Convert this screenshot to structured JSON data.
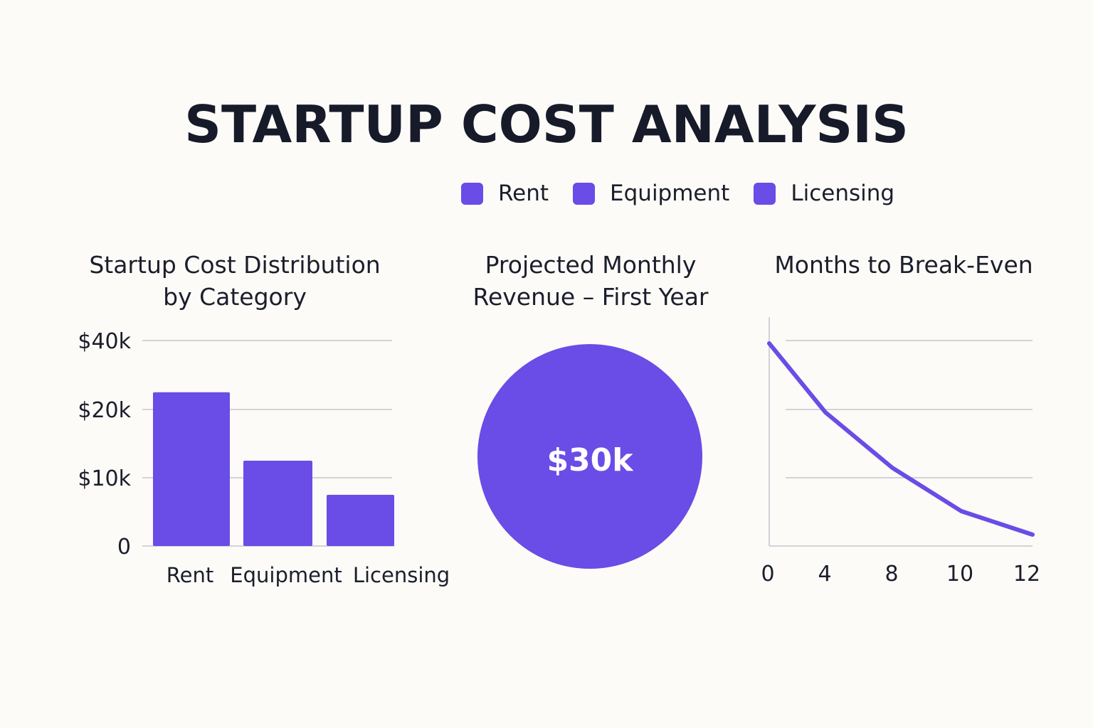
{
  "title": "STARTUP COST ANALYSIS",
  "colors": {
    "accent": "#6a4ce6",
    "grid": "#d3d3d8",
    "text": "#1b1e2b"
  },
  "legend": [
    {
      "label": "Rent",
      "color": "#6a4ce6"
    },
    {
      "label": "Equipment",
      "color": "#6a4ce6"
    },
    {
      "label": "Licensing",
      "color": "#6a4ce6"
    }
  ],
  "chart_data": [
    {
      "type": "bar",
      "title": "Startup Cost Distribution\nby Category",
      "categories": [
        "Rent",
        "Equipment",
        "Licensing"
      ],
      "values": [
        25000,
        12500,
        7500
      ],
      "y_ticks": [
        {
          "value": 0,
          "label": "0"
        },
        {
          "value": 10000,
          "label": "$10k"
        },
        {
          "value": 20000,
          "label": "$20k"
        },
        {
          "value": 40000,
          "label": "$40k"
        }
      ],
      "grid": true
    },
    {
      "type": "pie",
      "title": "Projected Monthly\nRevenue – First Year",
      "slices": [
        {
          "value": 30000,
          "label": "$30k"
        }
      ]
    },
    {
      "type": "line",
      "title": "Months to Break-Even",
      "x_ticks": [
        "0",
        "4",
        "8",
        "10",
        "12"
      ],
      "points": [
        {
          "x": 0,
          "y": 30000
        },
        {
          "x": 1,
          "y": 20000
        },
        {
          "x": 2,
          "y": 12000
        },
        {
          "x": 3,
          "y": 5000
        },
        {
          "x": 4,
          "y": 2000
        }
      ],
      "ylim": [
        0,
        34000
      ],
      "grid": true
    }
  ]
}
